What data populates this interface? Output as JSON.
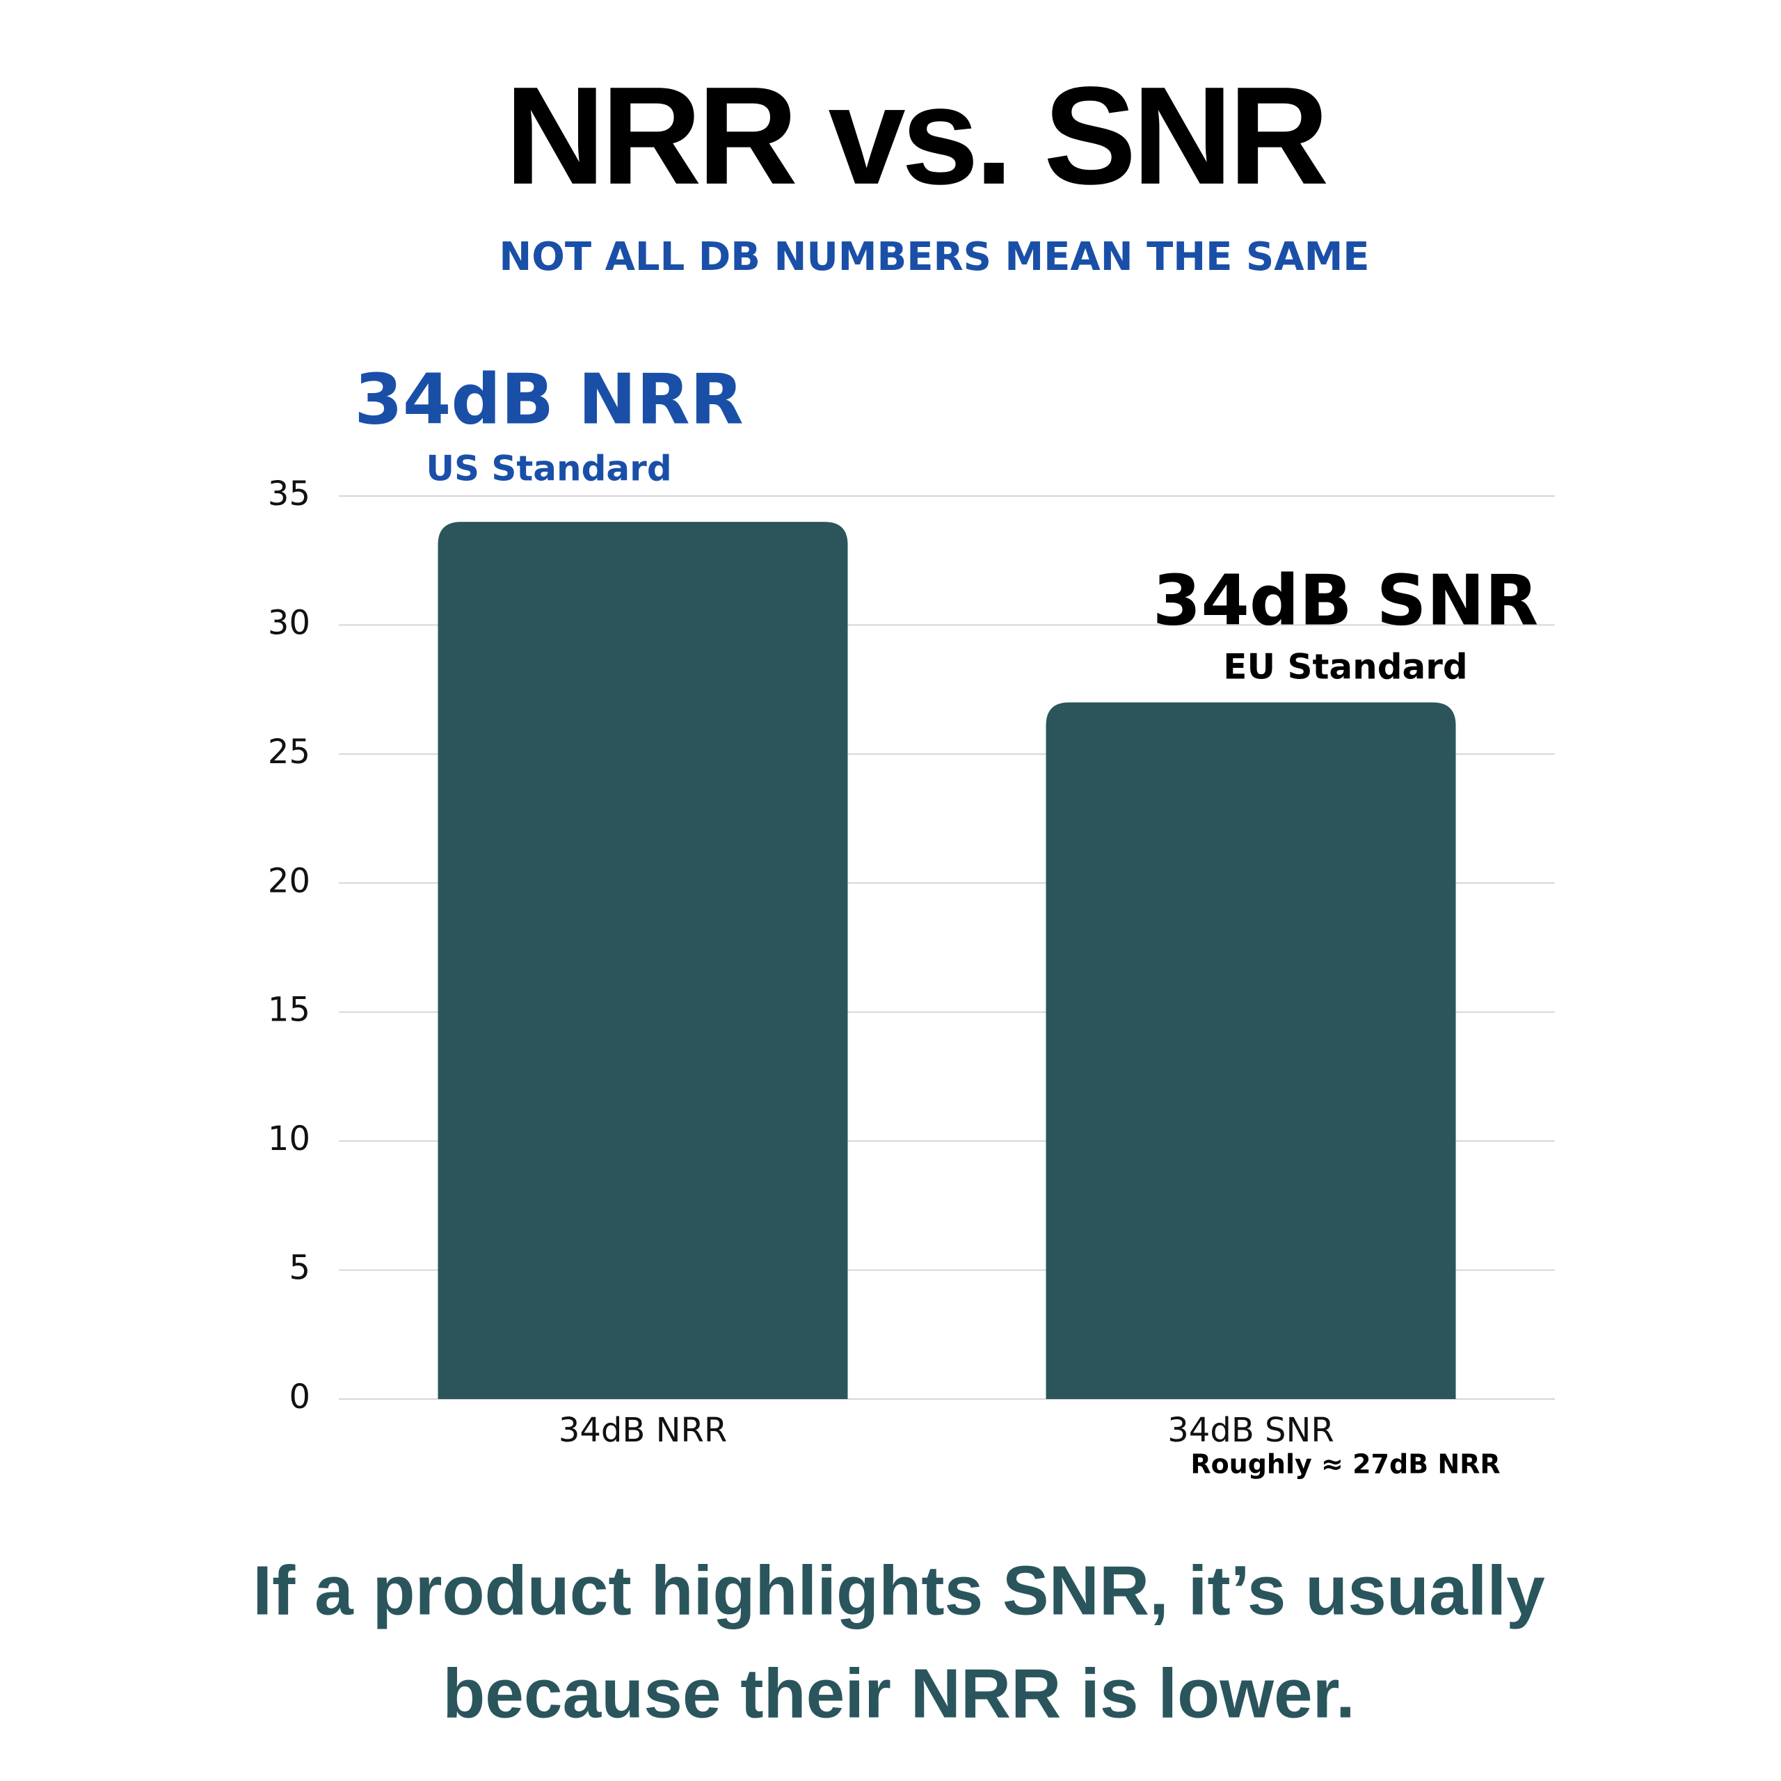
{
  "chart_data": {
    "type": "bar",
    "title": "NRR vs. SNR",
    "subtitle": "NOT ALL DB NUMBERS MEAN THE SAME",
    "categories": [
      "34dB NRR",
      "34dB SNR"
    ],
    "values": [
      34,
      27
    ],
    "color": "#2b555b",
    "ylim": [
      0,
      35
    ],
    "yticks": [
      0,
      5,
      10,
      15,
      20,
      25,
      30,
      35
    ],
    "grid": true,
    "annotations": [
      "34dB NRR",
      "US Standard",
      "34dB SNR",
      "EU Standard",
      "Roughly ≈ 27dB NRR"
    ],
    "footnote": [
      "If a product highlights SNR, it’s usually",
      "because their NRR is lower."
    ]
  }
}
